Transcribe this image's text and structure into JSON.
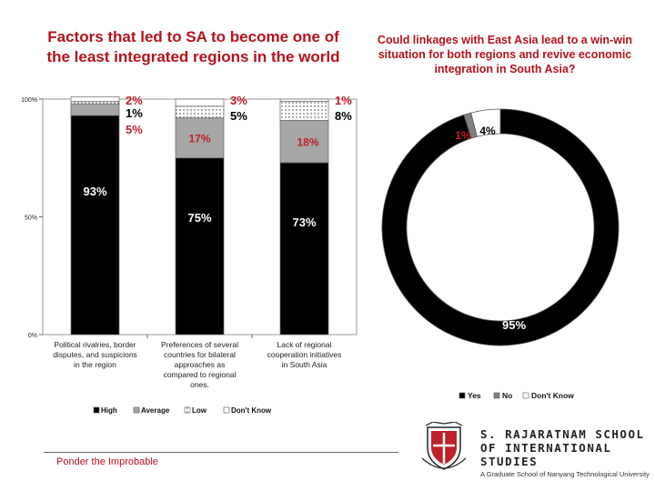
{
  "chart_data": [
    {
      "type": "stacked-bar",
      "title": "Factors that led to SA to become one of the least integrated regions in the world",
      "y_ticks": [
        "100%",
        "50%",
        "0%"
      ],
      "ylim": [
        0,
        100
      ],
      "categories": [
        [
          "Political rivalries, border",
          "disputes, and suspicions",
          "in the region"
        ],
        [
          "Preferences of several",
          "countries for bilateral",
          "approaches as",
          "compared to regional",
          "ones."
        ],
        [
          "Lack of regional",
          "cooperation initiatives",
          "in South Asia"
        ]
      ],
      "series": [
        {
          "name": "High",
          "values": [
            93,
            75,
            73
          ],
          "color": "#000000"
        },
        {
          "name": "Average",
          "values": [
            5,
            17,
            18
          ],
          "color": "#a6a6a6"
        },
        {
          "name": "Low",
          "values": [
            1,
            5,
            8
          ],
          "color": "#ffffff",
          "pattern": "dots"
        },
        {
          "name": "Don't Know",
          "values": [
            2,
            3,
            1
          ],
          "color": "#ffffff"
        }
      ],
      "data_labels": {
        "high": [
          "93%",
          "75%",
          "73%"
        ],
        "average": [
          "17%",
          "18%"
        ],
        "side": [
          [
            "2%",
            "1%",
            "5%"
          ],
          [
            "3%",
            "5%"
          ],
          [
            "1%",
            "8%"
          ]
        ]
      },
      "legend": [
        "High",
        "Average",
        "Low",
        "Don't Know"
      ],
      "legend_position": "bottom"
    },
    {
      "type": "donut",
      "title": "Could linkages with East Asia lead to a win-win situation for both regions and revive economic integration in South Asia?",
      "categories": [
        "Yes",
        "No",
        "Don't Know"
      ],
      "values": [
        95,
        1,
        4
      ],
      "colors": [
        "#000000",
        "#808080",
        "#ffffff"
      ],
      "labels": [
        "95%",
        "1%",
        "4%"
      ],
      "legend": [
        "Yes",
        "No",
        "Don't Know"
      ],
      "legend_position": "bottom"
    }
  ],
  "footer": {
    "tagline": "Ponder the Improbable"
  },
  "logo": {
    "line1": "S. RAJARATNAM SCHOOL",
    "line2": "OF INTERNATIONAL STUDIES",
    "line3": "A Graduate School of Nanyang Technological University"
  }
}
